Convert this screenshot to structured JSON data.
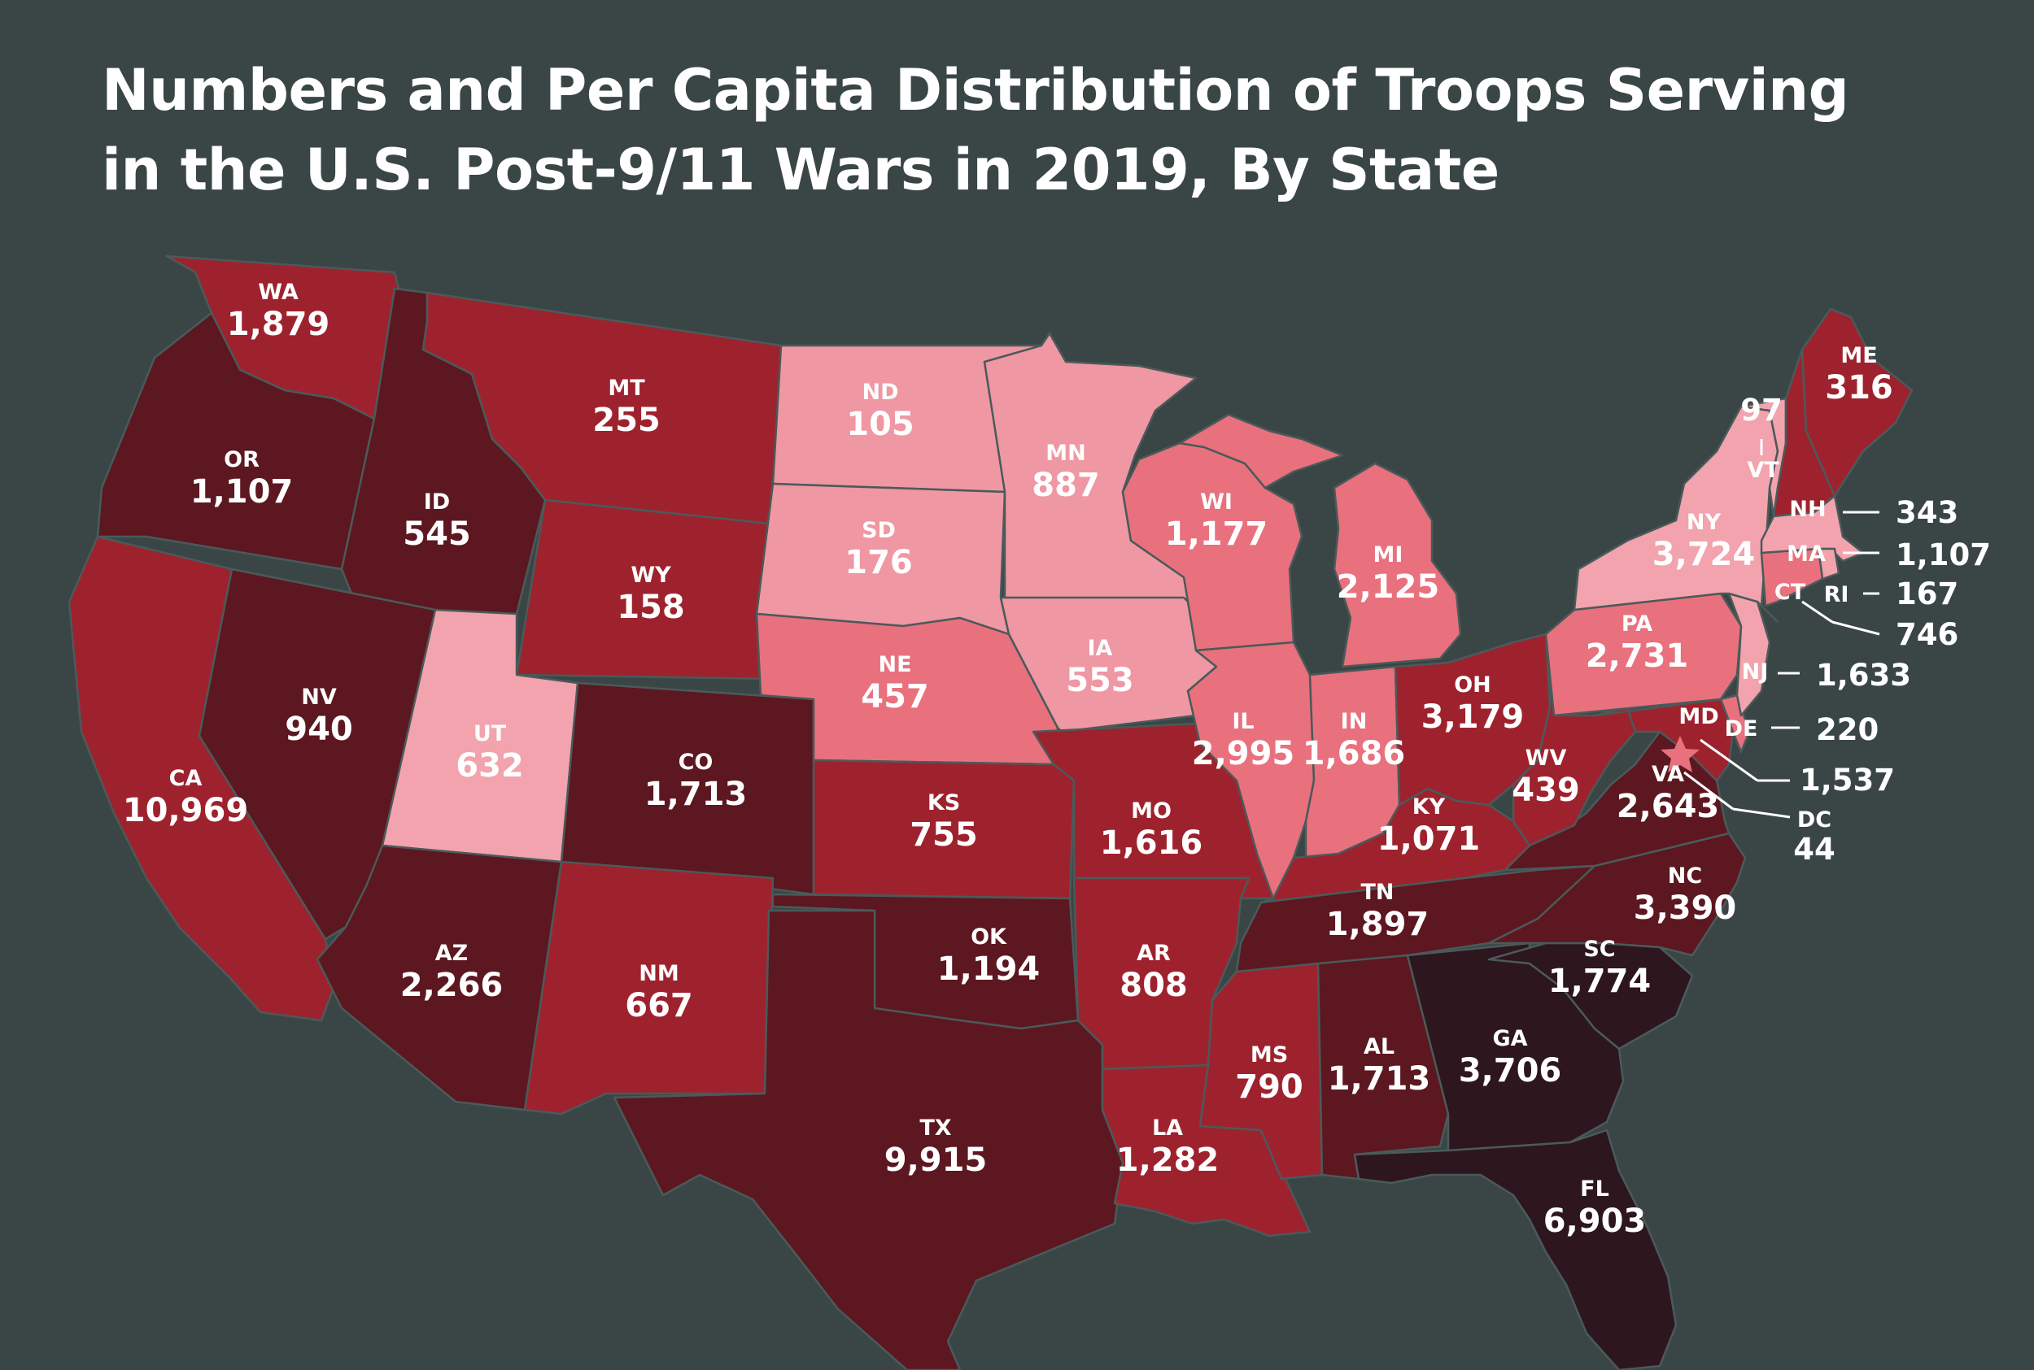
{
  "title_lines": [
    "Numbers and Per Capita Distribution of Troops Serving",
    "in the U.S. Post-9/11 Wars in 2019, By State"
  ],
  "colors": {
    "background": "#3a4645",
    "tier_lightest": "#f2a3ad",
    "tier_light": "#ef97a3",
    "tier_medium": "#e8717d",
    "tier_red": "#9e222d",
    "tier_dark": "#5c1720",
    "tier_darkest": "#2d161d",
    "dc_star": "#e8717d"
  },
  "chart_data": {
    "type": "choropleth",
    "states": [
      {
        "abbr": "WA",
        "value": "1,879",
        "tier": "tier_red"
      },
      {
        "abbr": "OR",
        "value": "1,107",
        "tier": "tier_dark"
      },
      {
        "abbr": "CA",
        "value": "10,969",
        "tier": "tier_red"
      },
      {
        "abbr": "ID",
        "value": "545",
        "tier": "tier_dark"
      },
      {
        "abbr": "NV",
        "value": "940",
        "tier": "tier_dark"
      },
      {
        "abbr": "MT",
        "value": "255",
        "tier": "tier_red"
      },
      {
        "abbr": "WY",
        "value": "158",
        "tier": "tier_red"
      },
      {
        "abbr": "UT",
        "value": "632",
        "tier": "tier_lightest"
      },
      {
        "abbr": "AZ",
        "value": "2,266",
        "tier": "tier_dark"
      },
      {
        "abbr": "CO",
        "value": "1,713",
        "tier": "tier_dark"
      },
      {
        "abbr": "NM",
        "value": "667",
        "tier": "tier_red"
      },
      {
        "abbr": "ND",
        "value": "105",
        "tier": "tier_light"
      },
      {
        "abbr": "SD",
        "value": "176",
        "tier": "tier_light"
      },
      {
        "abbr": "NE",
        "value": "457",
        "tier": "tier_medium"
      },
      {
        "abbr": "KS",
        "value": "755",
        "tier": "tier_red"
      },
      {
        "abbr": "OK",
        "value": "1,194",
        "tier": "tier_dark"
      },
      {
        "abbr": "TX",
        "value": "9,915",
        "tier": "tier_dark"
      },
      {
        "abbr": "MN",
        "value": "887",
        "tier": "tier_light"
      },
      {
        "abbr": "IA",
        "value": "553",
        "tier": "tier_light"
      },
      {
        "abbr": "MO",
        "value": "1,616",
        "tier": "tier_red"
      },
      {
        "abbr": "AR",
        "value": "808",
        "tier": "tier_red"
      },
      {
        "abbr": "LA",
        "value": "1,282",
        "tier": "tier_red"
      },
      {
        "abbr": "WI",
        "value": "1,177",
        "tier": "tier_medium"
      },
      {
        "abbr": "IL",
        "value": "2,995",
        "tier": "tier_medium"
      },
      {
        "abbr": "MI",
        "value": "2,125",
        "tier": "tier_medium"
      },
      {
        "abbr": "IN",
        "value": "1,686",
        "tier": "tier_medium"
      },
      {
        "abbr": "OH",
        "value": "3,179",
        "tier": "tier_red"
      },
      {
        "abbr": "KY",
        "value": "1,071",
        "tier": "tier_red"
      },
      {
        "abbr": "TN",
        "value": "1,897",
        "tier": "tier_dark"
      },
      {
        "abbr": "MS",
        "value": "790",
        "tier": "tier_red"
      },
      {
        "abbr": "AL",
        "value": "1,713",
        "tier": "tier_dark"
      },
      {
        "abbr": "GA",
        "value": "3,706",
        "tier": "tier_darkest"
      },
      {
        "abbr": "FL",
        "value": "6,903",
        "tier": "tier_darkest"
      },
      {
        "abbr": "SC",
        "value": "1,774",
        "tier": "tier_darkest"
      },
      {
        "abbr": "NC",
        "value": "3,390",
        "tier": "tier_dark"
      },
      {
        "abbr": "VA",
        "value": "2,643",
        "tier": "tier_dark"
      },
      {
        "abbr": "WV",
        "value": "439",
        "tier": "tier_red"
      },
      {
        "abbr": "PA",
        "value": "2,731",
        "tier": "tier_medium"
      },
      {
        "abbr": "NY",
        "value": "3,724",
        "tier": "tier_lightest"
      },
      {
        "abbr": "VT",
        "value": "97",
        "tier": "tier_lightest"
      },
      {
        "abbr": "NH",
        "value": "343",
        "tier": "tier_red"
      },
      {
        "abbr": "ME",
        "value": "316",
        "tier": "tier_red"
      },
      {
        "abbr": "MA",
        "value": "1,107",
        "tier": "tier_lightest"
      },
      {
        "abbr": "RI",
        "value": "167",
        "tier": "tier_lightest"
      },
      {
        "abbr": "CT",
        "value": "746",
        "tier": "tier_medium"
      },
      {
        "abbr": "NJ",
        "value": "1,633",
        "tier": "tier_lightest"
      },
      {
        "abbr": "DE",
        "value": "220",
        "tier": "tier_medium"
      },
      {
        "abbr": "MD",
        "value": "1,537",
        "tier": "tier_red"
      },
      {
        "abbr": "DC",
        "value": "44",
        "tier": "tier_medium"
      }
    ]
  }
}
